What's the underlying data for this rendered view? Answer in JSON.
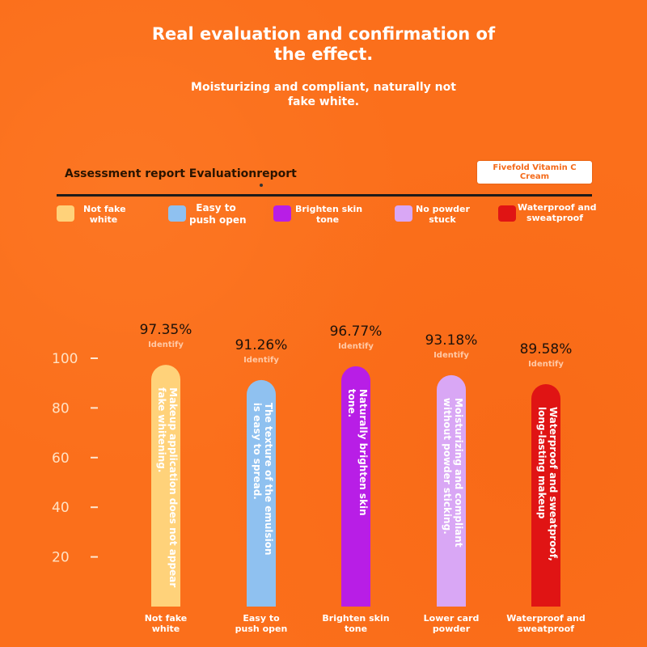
{
  "header": {
    "title_line1": "Real evaluation and confirmation of",
    "title_line2": "the effect.",
    "subtitle_line1": "Moisturizing and compliant, naturally not",
    "subtitle_line2": "fake white."
  },
  "report": {
    "title": "Assessment report Evaluationreport",
    "product_line1": "Fivefold Vitamin C",
    "product_line2": "Cream"
  },
  "legend": [
    {
      "line1": "Not fake",
      "line2": "white",
      "color": "#ffd27a"
    },
    {
      "line1": "Easy to",
      "line2": "push open",
      "color": "#8fc1f0"
    },
    {
      "line1": "Brighten skin",
      "line2": "tone",
      "color": "#b81ee6"
    },
    {
      "line1": "No powder",
      "line2": "stuck",
      "color": "#d9a7f5"
    },
    {
      "line1": "Waterproof and",
      "line2": "sweatproof",
      "color": "#e01414"
    }
  ],
  "chart_data": {
    "type": "bar",
    "categories": [
      [
        "Not fake",
        "white"
      ],
      [
        "Easy to",
        "push open"
      ],
      [
        "Brighten skin",
        "tone"
      ],
      [
        "Lower card",
        "powder"
      ],
      [
        "Waterproof and",
        "sweatproof"
      ]
    ],
    "values": [
      97.35,
      91.26,
      96.77,
      93.18,
      89.58
    ],
    "value_labels": [
      "97.35%",
      "91.26%",
      "96.77%",
      "93.18%",
      "89.58%"
    ],
    "sublabel": "Identify",
    "bar_text": [
      [
        "Makeup application does not appear",
        "fake whitening."
      ],
      [
        "The texture of the emulsion",
        "is easy to spread."
      ],
      [
        "Naturally brighten skin",
        "tone."
      ],
      [
        "Moisturizing and compliant",
        "without powder sticking."
      ],
      [
        "Waterproof and sweatproof,",
        "long-lasting makeup"
      ]
    ],
    "colors": [
      "#ffd27a",
      "#8fc1f0",
      "#b81ee6",
      "#d9a7f5",
      "#e01414"
    ],
    "yticks": [
      100,
      80,
      60,
      40,
      20
    ],
    "ylim": [
      0,
      100
    ]
  }
}
